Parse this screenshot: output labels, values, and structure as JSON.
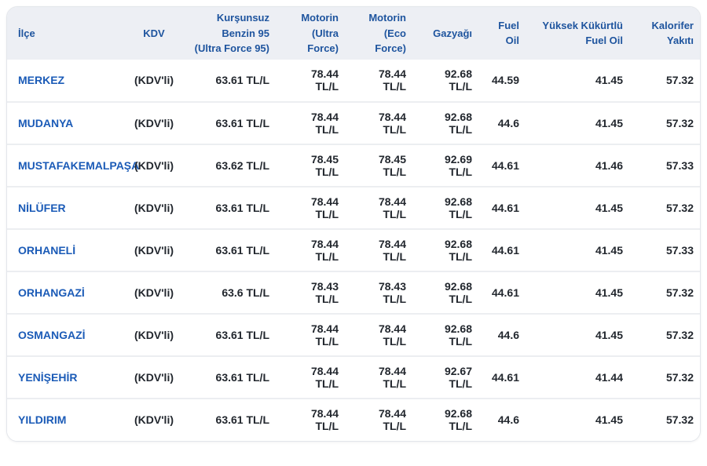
{
  "colors": {
    "header_bg": "#edeff4",
    "header_text": "#1e549e",
    "link": "#1b5bb7",
    "value_text": "#22272e",
    "separator": "#eceef1",
    "card_border": "#e3e6eb",
    "card_bg": "#ffffff"
  },
  "table": {
    "columns": [
      {
        "key": "ilce",
        "label": "İlçe"
      },
      {
        "key": "kdv",
        "label": "KDV"
      },
      {
        "key": "kursunsuz-benzin-95",
        "label": "Kurşunsuz\nBenzin 95\n(Ultra Force 95)"
      },
      {
        "key": "motorin-ultra-force",
        "label": "Motorin\n(Ultra\nForce)"
      },
      {
        "key": "motorin-eco-force",
        "label": "Motorin\n(Eco Force)"
      },
      {
        "key": "gazyagi",
        "label": "Gazyağı"
      },
      {
        "key": "fuel-oil",
        "label": "Fuel\nOil"
      },
      {
        "key": "yuksek-kukurtlu-fuel-oil",
        "label": "Yüksek Kükürtlü\nFuel Oil"
      },
      {
        "key": "kalorifer-yakiti",
        "label": "Kalorifer\nYakıtı"
      }
    ],
    "rows": [
      [
        "MERKEZ",
        "(KDV'li)",
        "63.61 TL/L",
        "78.44 TL/L",
        "78.44 TL/L",
        "92.68 TL/L",
        "44.59",
        "41.45",
        "57.32"
      ],
      [
        "MUDANYA",
        "(KDV'li)",
        "63.61 TL/L",
        "78.44 TL/L",
        "78.44 TL/L",
        "92.68 TL/L",
        "44.6",
        "41.45",
        "57.32"
      ],
      [
        "MUSTAFAKEMALPAŞA",
        "(KDV'li)",
        "63.62 TL/L",
        "78.45 TL/L",
        "78.45 TL/L",
        "92.69 TL/L",
        "44.61",
        "41.46",
        "57.33"
      ],
      [
        "NİLÜFER",
        "(KDV'li)",
        "63.61 TL/L",
        "78.44 TL/L",
        "78.44 TL/L",
        "92.68 TL/L",
        "44.61",
        "41.45",
        "57.32"
      ],
      [
        "ORHANELİ",
        "(KDV'li)",
        "63.61 TL/L",
        "78.44 TL/L",
        "78.44 TL/L",
        "92.68 TL/L",
        "44.61",
        "41.45",
        "57.33"
      ],
      [
        "ORHANGAZİ",
        "(KDV'li)",
        "63.6 TL/L",
        "78.43 TL/L",
        "78.43 TL/L",
        "92.68 TL/L",
        "44.61",
        "41.45",
        "57.32"
      ],
      [
        "OSMANGAZİ",
        "(KDV'li)",
        "63.61 TL/L",
        "78.44 TL/L",
        "78.44 TL/L",
        "92.68 TL/L",
        "44.6",
        "41.45",
        "57.32"
      ],
      [
        "YENİŞEHİR",
        "(KDV'li)",
        "63.61 TL/L",
        "78.44 TL/L",
        "78.44 TL/L",
        "92.67 TL/L",
        "44.61",
        "41.44",
        "57.32"
      ],
      [
        "YILDIRIM",
        "(KDV'li)",
        "63.61 TL/L",
        "78.44 TL/L",
        "78.44 TL/L",
        "92.68 TL/L",
        "44.6",
        "41.45",
        "57.32"
      ]
    ]
  }
}
